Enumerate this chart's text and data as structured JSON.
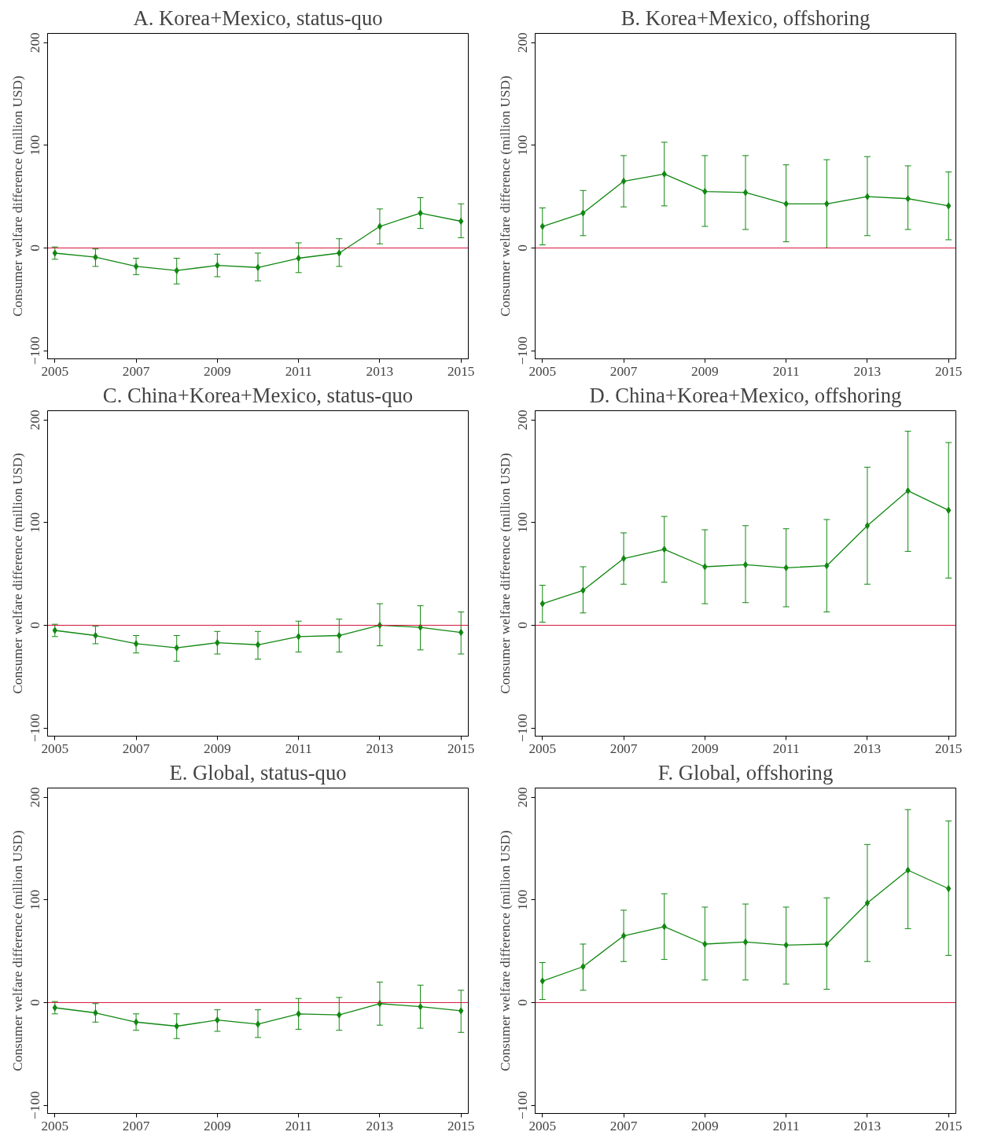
{
  "chart_data": [
    {
      "type": "line",
      "title": "A. Korea+Mexico, status-quo",
      "ylabel": "Consumer welfare difference (million USD)",
      "x": [
        2005,
        2006,
        2007,
        2008,
        2009,
        2010,
        2011,
        2012,
        2013,
        2014,
        2015
      ],
      "values": [
        -5,
        -9,
        -18,
        -22,
        -17,
        -19,
        -10,
        -5,
        21,
        34,
        26
      ],
      "errors": [
        [
          -11,
          1
        ],
        [
          -18,
          -1
        ],
        [
          -26,
          -10
        ],
        [
          -35,
          -10
        ],
        [
          -28,
          -6
        ],
        [
          -32,
          -5
        ],
        [
          -24,
          5
        ],
        [
          -18,
          9
        ],
        [
          4,
          38
        ],
        [
          19,
          49
        ],
        [
          10,
          43
        ]
      ],
      "color": "#118811",
      "marker": "diamond",
      "line_style": "solid",
      "grid": false,
      "xlim": [
        2004.82,
        2015.18
      ],
      "ylim": [
        -108,
        209
      ],
      "xticks": [
        2005,
        2007,
        2009,
        2011,
        2013,
        2015
      ],
      "yticks": [
        -100,
        0,
        100,
        200
      ],
      "ref_lines": [
        {
          "axis": "y",
          "value": 0,
          "color": "#d4143c"
        }
      ]
    },
    {
      "type": "line",
      "title": "B. Korea+Mexico, offshoring",
      "ylabel": "Consumer welfare difference (million USD)",
      "x": [
        2005,
        2006,
        2007,
        2008,
        2009,
        2010,
        2011,
        2012,
        2013,
        2014,
        2015
      ],
      "values": [
        21,
        34,
        65,
        72,
        55,
        54,
        43,
        43,
        50,
        48,
        41
      ],
      "errors": [
        [
          3,
          39
        ],
        [
          12,
          56
        ],
        [
          40,
          90
        ],
        [
          41,
          103
        ],
        [
          21,
          90
        ],
        [
          18,
          90
        ],
        [
          6,
          81
        ],
        [
          0,
          86
        ],
        [
          12,
          89
        ],
        [
          18,
          80
        ],
        [
          8,
          74
        ]
      ],
      "color": "#118811",
      "marker": "diamond",
      "line_style": "solid",
      "grid": false,
      "xlim": [
        2004.82,
        2015.18
      ],
      "ylim": [
        -108,
        209
      ],
      "xticks": [
        2005,
        2007,
        2009,
        2011,
        2013,
        2015
      ],
      "yticks": [
        -100,
        0,
        100,
        200
      ],
      "ref_lines": [
        {
          "axis": "y",
          "value": 0,
          "color": "#d4143c"
        }
      ]
    },
    {
      "type": "line",
      "title": "C. China+Korea+Mexico, status-quo",
      "ylabel": "Consumer welfare difference (million USD)",
      "x": [
        2005,
        2006,
        2007,
        2008,
        2009,
        2010,
        2011,
        2012,
        2013,
        2014,
        2015
      ],
      "values": [
        -5,
        -10,
        -18,
        -22,
        -17,
        -19,
        -11,
        -10,
        0,
        -2,
        -7
      ],
      "errors": [
        [
          -11,
          1
        ],
        [
          -18,
          -1
        ],
        [
          -27,
          -10
        ],
        [
          -35,
          -10
        ],
        [
          -28,
          -6
        ],
        [
          -33,
          -6
        ],
        [
          -26,
          4
        ],
        [
          -26,
          6
        ],
        [
          -20,
          21
        ],
        [
          -24,
          19
        ],
        [
          -28,
          13
        ]
      ],
      "color": "#118811",
      "marker": "diamond",
      "line_style": "solid",
      "grid": false,
      "xlim": [
        2004.82,
        2015.18
      ],
      "ylim": [
        -108,
        209
      ],
      "xticks": [
        2005,
        2007,
        2009,
        2011,
        2013,
        2015
      ],
      "yticks": [
        -100,
        0,
        100,
        200
      ],
      "ref_lines": [
        {
          "axis": "y",
          "value": 0,
          "color": "#d4143c"
        }
      ]
    },
    {
      "type": "line",
      "title": "D. China+Korea+Mexico, offshoring",
      "ylabel": "Consumer welfare difference (million USD)",
      "x": [
        2005,
        2006,
        2007,
        2008,
        2009,
        2010,
        2011,
        2012,
        2013,
        2014,
        2015
      ],
      "values": [
        21,
        34,
        65,
        74,
        57,
        59,
        56,
        58,
        97,
        131,
        112
      ],
      "errors": [
        [
          3,
          39
        ],
        [
          12,
          57
        ],
        [
          40,
          90
        ],
        [
          42,
          106
        ],
        [
          21,
          93
        ],
        [
          22,
          97
        ],
        [
          18,
          94
        ],
        [
          13,
          103
        ],
        [
          40,
          154
        ],
        [
          72,
          189
        ],
        [
          46,
          178
        ]
      ],
      "color": "#118811",
      "marker": "diamond",
      "line_style": "solid",
      "grid": false,
      "xlim": [
        2004.82,
        2015.18
      ],
      "ylim": [
        -108,
        209
      ],
      "xticks": [
        2005,
        2007,
        2009,
        2011,
        2013,
        2015
      ],
      "yticks": [
        -100,
        0,
        100,
        200
      ],
      "ref_lines": [
        {
          "axis": "y",
          "value": 0,
          "color": "#d4143c"
        }
      ]
    },
    {
      "type": "line",
      "title": "E. Global, status-quo",
      "ylabel": "Consumer welfare difference (million USD)",
      "x": [
        2005,
        2006,
        2007,
        2008,
        2009,
        2010,
        2011,
        2012,
        2013,
        2014,
        2015
      ],
      "values": [
        -5,
        -10,
        -19,
        -23,
        -17,
        -21,
        -11,
        -12,
        -1,
        -4,
        -8
      ],
      "errors": [
        [
          -11,
          1
        ],
        [
          -19,
          -1
        ],
        [
          -27,
          -11
        ],
        [
          -35,
          -11
        ],
        [
          -28,
          -7
        ],
        [
          -34,
          -7
        ],
        [
          -26,
          4
        ],
        [
          -27,
          5
        ],
        [
          -22,
          20
        ],
        [
          -25,
          17
        ],
        [
          -29,
          12
        ]
      ],
      "color": "#118811",
      "marker": "diamond",
      "line_style": "solid",
      "grid": false,
      "xlim": [
        2004.82,
        2015.18
      ],
      "ylim": [
        -108,
        209
      ],
      "xticks": [
        2005,
        2007,
        2009,
        2011,
        2013,
        2015
      ],
      "yticks": [
        -100,
        0,
        100,
        200
      ],
      "ref_lines": [
        {
          "axis": "y",
          "value": 0,
          "color": "#d4143c"
        }
      ]
    },
    {
      "type": "line",
      "title": "F. Global, offshoring",
      "ylabel": "Consumer welfare difference (million USD)",
      "x": [
        2005,
        2006,
        2007,
        2008,
        2009,
        2010,
        2011,
        2012,
        2013,
        2014,
        2015
      ],
      "values": [
        21,
        35,
        65,
        74,
        57,
        59,
        56,
        57,
        97,
        129,
        111
      ],
      "errors": [
        [
          3,
          39
        ],
        [
          12,
          57
        ],
        [
          40,
          90
        ],
        [
          42,
          106
        ],
        [
          22,
          93
        ],
        [
          22,
          96
        ],
        [
          18,
          93
        ],
        [
          13,
          102
        ],
        [
          40,
          154
        ],
        [
          72,
          188
        ],
        [
          46,
          177
        ]
      ],
      "color": "#118811",
      "marker": "diamond",
      "line_style": "solid",
      "grid": false,
      "xlim": [
        2004.82,
        2015.18
      ],
      "ylim": [
        -108,
        209
      ],
      "xticks": [
        2005,
        2007,
        2009,
        2011,
        2013,
        2015
      ],
      "yticks": [
        -100,
        0,
        100,
        200
      ],
      "ref_lines": [
        {
          "axis": "y",
          "value": 0,
          "color": "#d4143c"
        }
      ]
    }
  ]
}
